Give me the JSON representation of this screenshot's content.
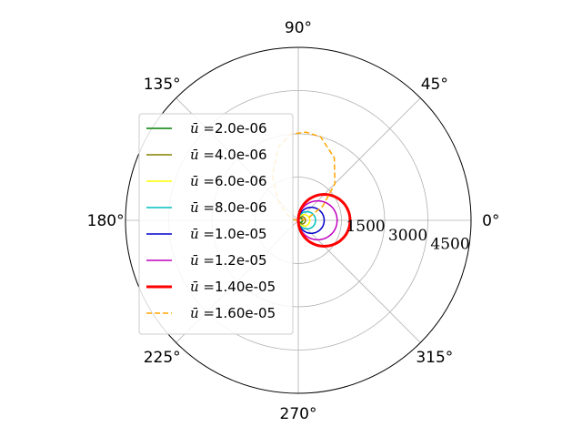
{
  "chart_data": {
    "type": "line",
    "projection": "polar",
    "title": "",
    "theta_ticks": [
      "0°",
      "45°",
      "90°",
      "135°",
      "180°",
      "225°",
      "270°",
      "315°"
    ],
    "r_ticks": [
      "1500",
      "3000",
      "4500"
    ],
    "r_tick_values": [
      1500,
      3000,
      4500
    ],
    "rlim": [
      0,
      6000
    ],
    "grid": true,
    "legend_position": "center-left",
    "series": [
      {
        "name": "2.0e-06",
        "legend_prefix": "ū =",
        "color": "#008000",
        "style": "solid",
        "width": 1.5,
        "circle_diameter": 150
      },
      {
        "name": "4.0e-06",
        "legend_prefix": "ū =",
        "color": "#808000",
        "style": "solid",
        "width": 1.5,
        "circle_diameter": 250
      },
      {
        "name": "6.0e-06",
        "legend_prefix": "ū =",
        "color": "#ffff00",
        "style": "solid",
        "width": 1.5,
        "circle_diameter": 400
      },
      {
        "name": "8.0e-06",
        "legend_prefix": "ū =",
        "color": "#00bfbf",
        "style": "solid",
        "width": 1.5,
        "circle_diameter": 600
      },
      {
        "name": "1.0e-05",
        "legend_prefix": "ū =",
        "color": "#0000cc",
        "style": "solid",
        "width": 1.5,
        "circle_diameter": 900
      },
      {
        "name": "1.2e-05",
        "legend_prefix": "ū =",
        "color": "#bf00bf",
        "style": "solid",
        "width": 1.5,
        "circle_diameter": 1350
      },
      {
        "name": "1.40e-05",
        "legend_prefix": "ū =",
        "color": "#ff0000",
        "style": "solid",
        "width": 3,
        "circle_diameter": 1800
      },
      {
        "name": "1.60e-05",
        "legend_prefix": "ū =",
        "color": "#ffa500",
        "style": "dashed",
        "width": 1.5,
        "curve": [
          {
            "theta": 0,
            "r": 100
          },
          {
            "theta": 15,
            "r": 380
          },
          {
            "theta": 30,
            "r": 980
          },
          {
            "theta": 45,
            "r": 1800
          },
          {
            "theta": 60,
            "r": 2500
          },
          {
            "theta": 75,
            "r": 3000
          },
          {
            "theta": 85,
            "r": 3070
          },
          {
            "theta": 95,
            "r": 3000
          },
          {
            "theta": 105,
            "r": 2650
          },
          {
            "theta": 120,
            "r": 1800
          },
          {
            "theta": 135,
            "r": 1000
          },
          {
            "theta": 150,
            "r": 500
          },
          {
            "theta": 165,
            "r": 200
          },
          {
            "theta": 180,
            "r": 60
          }
        ]
      }
    ]
  }
}
